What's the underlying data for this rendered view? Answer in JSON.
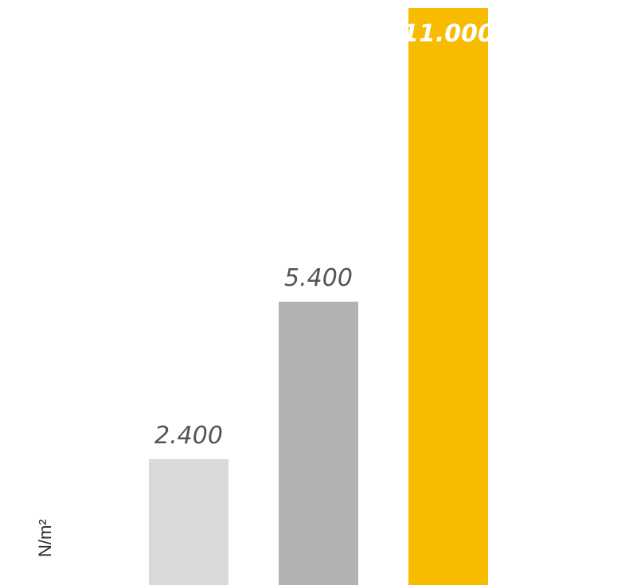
{
  "chart_data": {
    "type": "bar",
    "categories": [
      "",
      "",
      ""
    ],
    "values": [
      2400,
      5400,
      11000
    ],
    "value_labels": [
      "2.400",
      "5.400",
      "11.000"
    ],
    "colors": [
      "#d9d9d9",
      "#b2b2b2",
      "#f7bb00"
    ],
    "ylabel": "N/m²",
    "xlabel": "",
    "title": "",
    "ylim": [
      0,
      11000
    ],
    "grid": false,
    "legend": "none"
  }
}
